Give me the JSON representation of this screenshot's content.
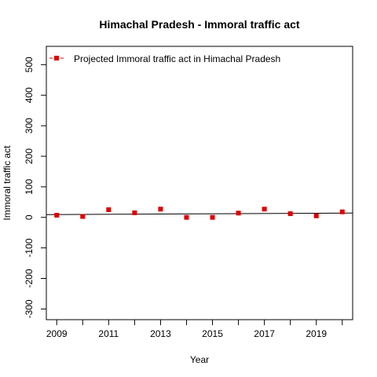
{
  "chart_data": {
    "type": "scatter",
    "title": "Himachal Pradesh  -  Immoral traffic act",
    "xlabel": "Year",
    "ylabel": "Immoral traffic act",
    "x_ticks": [
      2009,
      2011,
      2013,
      2015,
      2017,
      2019
    ],
    "y_ticks": [
      -300,
      -200,
      -100,
      0,
      100,
      200,
      300,
      400,
      500
    ],
    "xlim": [
      2008.6,
      2020.4
    ],
    "ylim": [
      -335,
      560
    ],
    "series": [
      {
        "name": "Projected  Immoral traffic act  in  Himachal Pradesh",
        "color": "#dd0000",
        "marker": "square",
        "points": [
          {
            "x": 2009,
            "y": 7
          },
          {
            "x": 2010,
            "y": 3
          },
          {
            "x": 2011,
            "y": 25
          },
          {
            "x": 2012,
            "y": 15
          },
          {
            "x": 2013,
            "y": 27
          },
          {
            "x": 2014,
            "y": 0
          },
          {
            "x": 2015,
            "y": 0
          },
          {
            "x": 2016,
            "y": 14
          },
          {
            "x": 2017,
            "y": 27
          },
          {
            "x": 2018,
            "y": 12
          },
          {
            "x": 2019,
            "y": 5
          },
          {
            "x": 2020,
            "y": 18
          }
        ]
      }
    ],
    "trend_line": {
      "from": {
        "x": 2008.6,
        "y": 9
      },
      "to": {
        "x": 2020.4,
        "y": 14
      }
    },
    "legend_position": "top-left",
    "grid": false
  }
}
